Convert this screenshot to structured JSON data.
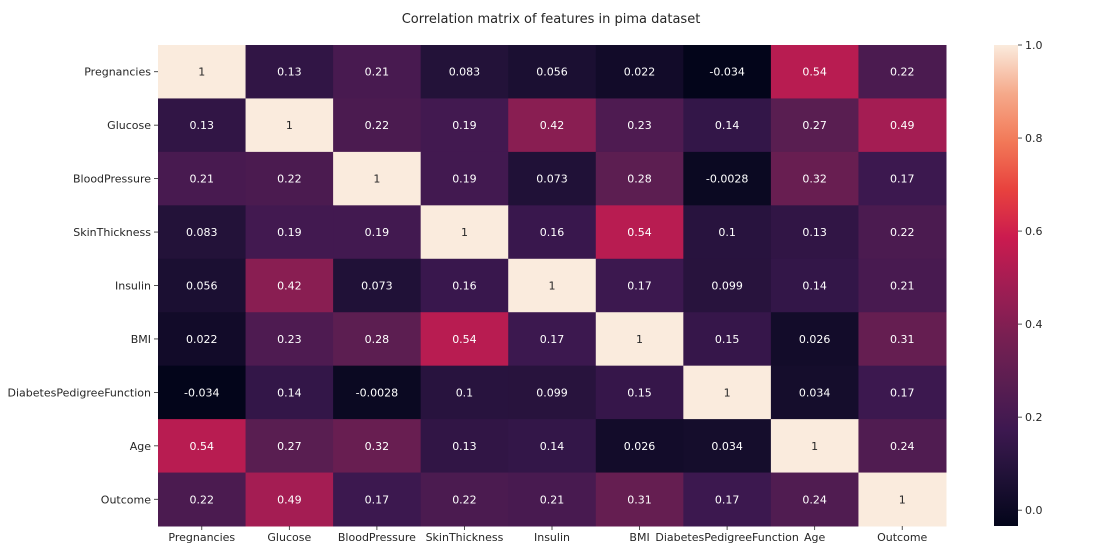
{
  "chart_data": {
    "type": "heatmap",
    "title": "Correlation matrix of features in pima dataset",
    "xlabel": "",
    "ylabel": "",
    "colormap": "rocket",
    "rows": [
      "Pregnancies",
      "Glucose",
      "BloodPressure",
      "SkinThickness",
      "Insulin",
      "BMI",
      "DiabetesPedigreeFunction",
      "Age",
      "Outcome"
    ],
    "columns": [
      "Pregnancies",
      "Glucose",
      "BloodPressure",
      "SkinThickness",
      "Insulin",
      "BMI",
      "DiabetesPedigreeFunction",
      "Age",
      "Outcome"
    ],
    "values": [
      [
        1,
        0.13,
        0.21,
        0.083,
        0.056,
        0.022,
        -0.034,
        0.54,
        0.22
      ],
      [
        0.13,
        1,
        0.22,
        0.19,
        0.42,
        0.23,
        0.14,
        0.27,
        0.49
      ],
      [
        0.21,
        0.22,
        1,
        0.19,
        0.073,
        0.28,
        -0.0028,
        0.32,
        0.17
      ],
      [
        0.083,
        0.19,
        0.19,
        1,
        0.16,
        0.54,
        0.1,
        0.13,
        0.22
      ],
      [
        0.056,
        0.42,
        0.073,
        0.16,
        1,
        0.17,
        0.099,
        0.14,
        0.21
      ],
      [
        0.022,
        0.23,
        0.28,
        0.54,
        0.17,
        1,
        0.15,
        0.026,
        0.31
      ],
      [
        -0.034,
        0.14,
        -0.0028,
        0.1,
        0.099,
        0.15,
        1,
        0.034,
        0.17
      ],
      [
        0.54,
        0.27,
        0.32,
        0.13,
        0.14,
        0.026,
        0.034,
        1,
        0.24
      ],
      [
        0.22,
        0.49,
        0.17,
        0.22,
        0.21,
        0.31,
        0.17,
        0.24,
        1
      ]
    ],
    "labels": [
      [
        "1",
        "0.13",
        "0.21",
        "0.083",
        "0.056",
        "0.022",
        "-0.034",
        "0.54",
        "0.22"
      ],
      [
        "0.13",
        "1",
        "0.22",
        "0.19",
        "0.42",
        "0.23",
        "0.14",
        "0.27",
        "0.49"
      ],
      [
        "0.21",
        "0.22",
        "1",
        "0.19",
        "0.073",
        "0.28",
        "-0.0028",
        "0.32",
        "0.17"
      ],
      [
        "0.083",
        "0.19",
        "0.19",
        "1",
        "0.16",
        "0.54",
        "0.1",
        "0.13",
        "0.22"
      ],
      [
        "0.056",
        "0.42",
        "0.073",
        "0.16",
        "1",
        "0.17",
        "0.099",
        "0.14",
        "0.21"
      ],
      [
        "0.022",
        "0.23",
        "0.28",
        "0.54",
        "0.17",
        "1",
        "0.15",
        "0.026",
        "0.31"
      ],
      [
        "-0.034",
        "0.14",
        "-0.0028",
        "0.1",
        "0.099",
        "0.15",
        "1",
        "0.034",
        "0.17"
      ],
      [
        "0.54",
        "0.27",
        "0.32",
        "0.13",
        "0.14",
        "0.026",
        "0.034",
        "1",
        "0.24"
      ],
      [
        "0.22",
        "0.49",
        "0.17",
        "0.22",
        "0.21",
        "0.31",
        "0.17",
        "0.24",
        "1"
      ]
    ],
    "vmin": -0.034,
    "vmax": 1,
    "colorbar_ticks": [
      "0.0",
      "0.2",
      "0.4",
      "0.6",
      "0.8",
      "1.0"
    ],
    "colorbar_tick_values": [
      0,
      0.2,
      0.4,
      0.6,
      0.8,
      1.0
    ],
    "grid": false,
    "legend": "colorbar-right"
  }
}
